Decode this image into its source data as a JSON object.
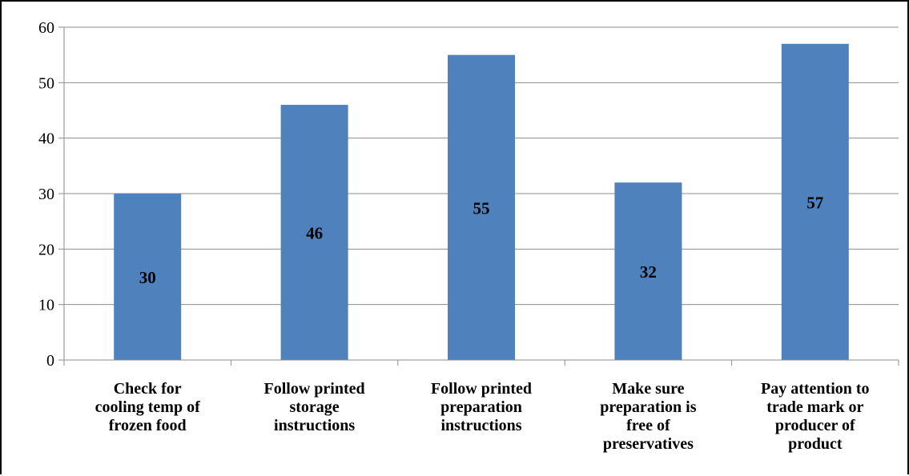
{
  "chart_data": {
    "type": "bar",
    "title": "",
    "xlabel": "",
    "ylabel": "",
    "ylim": [
      0,
      60
    ],
    "yticks": [
      0,
      10,
      20,
      30,
      40,
      50,
      60
    ],
    "grid": true,
    "bar_color": "#4F81BD",
    "categories": [
      [
        "Check for",
        "cooling temp of",
        "frozen food"
      ],
      [
        "Follow printed",
        "storage",
        "instructions"
      ],
      [
        "Follow printed",
        "preparation",
        "instructions"
      ],
      [
        "Make sure",
        "preparation is",
        "free of",
        "preservatives"
      ],
      [
        "Pay attention to",
        "trade mark or",
        "producer of",
        "product"
      ]
    ],
    "values": [
      30,
      46,
      55,
      32,
      57
    ],
    "data_labels": [
      "30",
      "46",
      "55",
      "32",
      "57"
    ]
  }
}
